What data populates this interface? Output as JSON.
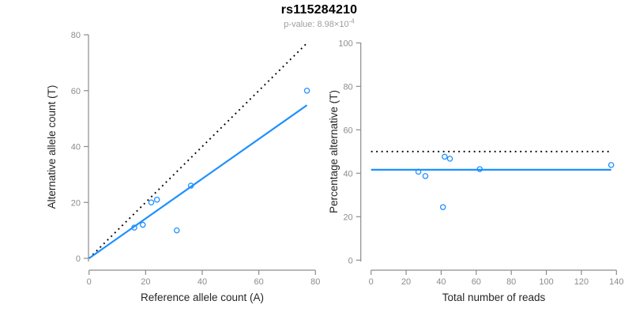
{
  "figure": {
    "title": "rs115284210",
    "subtitle": {
      "label": "p-value:",
      "value_base": "8.98×10",
      "exponent": "-4"
    }
  },
  "colors": {
    "point_blue": "#1E90FF",
    "fit_line_blue": "#1E90FF",
    "dotted_line_black": "#000000",
    "axis_gray": "#8c8c8c",
    "tick_label_gray": "#8c8c8c",
    "axis_title_color": "#262626",
    "title_color": "#000000",
    "subtitle_gray": "#9e9e9e"
  },
  "chart_data": [
    {
      "type": "scatter",
      "name": "allele-counts-panel",
      "xlabel": "Reference allele count (A)",
      "ylabel": "Alternative allele count (T)",
      "xlim": [
        0,
        80
      ],
      "ylim": [
        0,
        80
      ],
      "xticks": [
        0,
        20,
        40,
        60,
        80
      ],
      "yticks": [
        0,
        20,
        40,
        60,
        80
      ],
      "grid": false,
      "legend": "none",
      "points": [
        [
          16,
          11
        ],
        [
          19,
          12
        ],
        [
          22,
          20
        ],
        [
          24,
          21
        ],
        [
          31,
          10
        ],
        [
          36,
          26
        ],
        [
          77,
          60
        ]
      ],
      "lines": [
        {
          "name": "expected-1to1-line",
          "style": "dotted",
          "color": "#000000",
          "x": [
            0,
            77
          ],
          "y": [
            0,
            77
          ]
        },
        {
          "name": "fitted-ratio-line",
          "style": "solid",
          "color": "#1E90FF",
          "x": [
            0,
            77
          ],
          "y": [
            0,
            54.8
          ]
        }
      ]
    },
    {
      "type": "scatter",
      "name": "percentage-vs-reads-panel",
      "xlabel": "Total number of reads",
      "ylabel": "Percentage alternative (T)",
      "xlim": [
        0,
        140
      ],
      "ylim": [
        0,
        100
      ],
      "xticks": [
        0,
        20,
        40,
        60,
        80,
        100,
        120,
        140
      ],
      "yticks": [
        0,
        20,
        40,
        60,
        80,
        100
      ],
      "grid": false,
      "legend": "none",
      "points": [
        [
          27,
          40.7
        ],
        [
          31,
          38.7
        ],
        [
          41,
          24.4
        ],
        [
          42,
          47.6
        ],
        [
          45,
          46.7
        ],
        [
          62,
          41.9
        ],
        [
          137,
          43.8
        ]
      ],
      "lines": [
        {
          "name": "expected-50pct-line",
          "style": "dotted",
          "color": "#000000",
          "x": [
            0,
            137
          ],
          "y": [
            50,
            50
          ]
        },
        {
          "name": "fitted-percentage-line",
          "style": "solid",
          "color": "#1E90FF",
          "x": [
            0,
            137
          ],
          "y": [
            41.6,
            41.6
          ]
        }
      ]
    }
  ]
}
